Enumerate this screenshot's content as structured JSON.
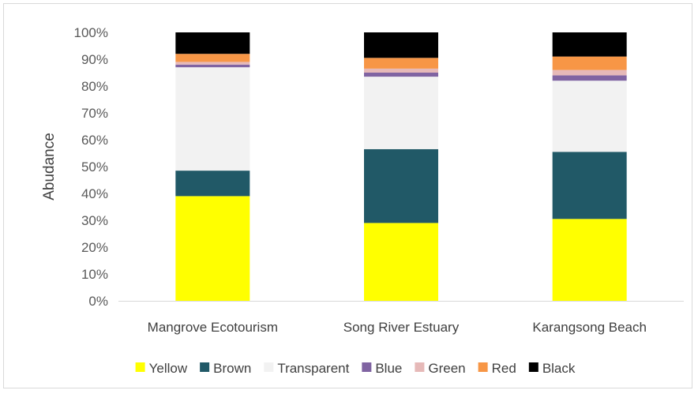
{
  "chart_data": {
    "type": "bar",
    "stacked": true,
    "percent": true,
    "title": "",
    "xlabel": "",
    "ylabel": "Abudance",
    "ylim": [
      0,
      100
    ],
    "yticks": [
      "0%",
      "10%",
      "20%",
      "30%",
      "40%",
      "50%",
      "60%",
      "70%",
      "80%",
      "90%",
      "100%"
    ],
    "grid": false,
    "legend_position": "bottom",
    "categories": [
      "Mangrove Ecotourism",
      "Song River Estuary",
      "Karangsong Beach"
    ],
    "series": [
      {
        "name": "Yellow",
        "color": "#ffff00",
        "values": [
          39,
          29,
          30.5
        ]
      },
      {
        "name": "Brown",
        "color": "#215967",
        "values": [
          9.5,
          27.5,
          25
        ]
      },
      {
        "name": "Transparent",
        "color": "#f2f2f2",
        "values": [
          38.5,
          27,
          26.5
        ]
      },
      {
        "name": "Blue",
        "color": "#8064a2",
        "values": [
          1,
          1.5,
          2
        ]
      },
      {
        "name": "Green",
        "color": "#e6b9b8",
        "values": [
          1,
          1.5,
          2
        ]
      },
      {
        "name": "Red",
        "color": "#f79646",
        "values": [
          3,
          4,
          5
        ]
      },
      {
        "name": "Black",
        "color": "#000000",
        "values": [
          8,
          9.5,
          9
        ]
      }
    ]
  }
}
